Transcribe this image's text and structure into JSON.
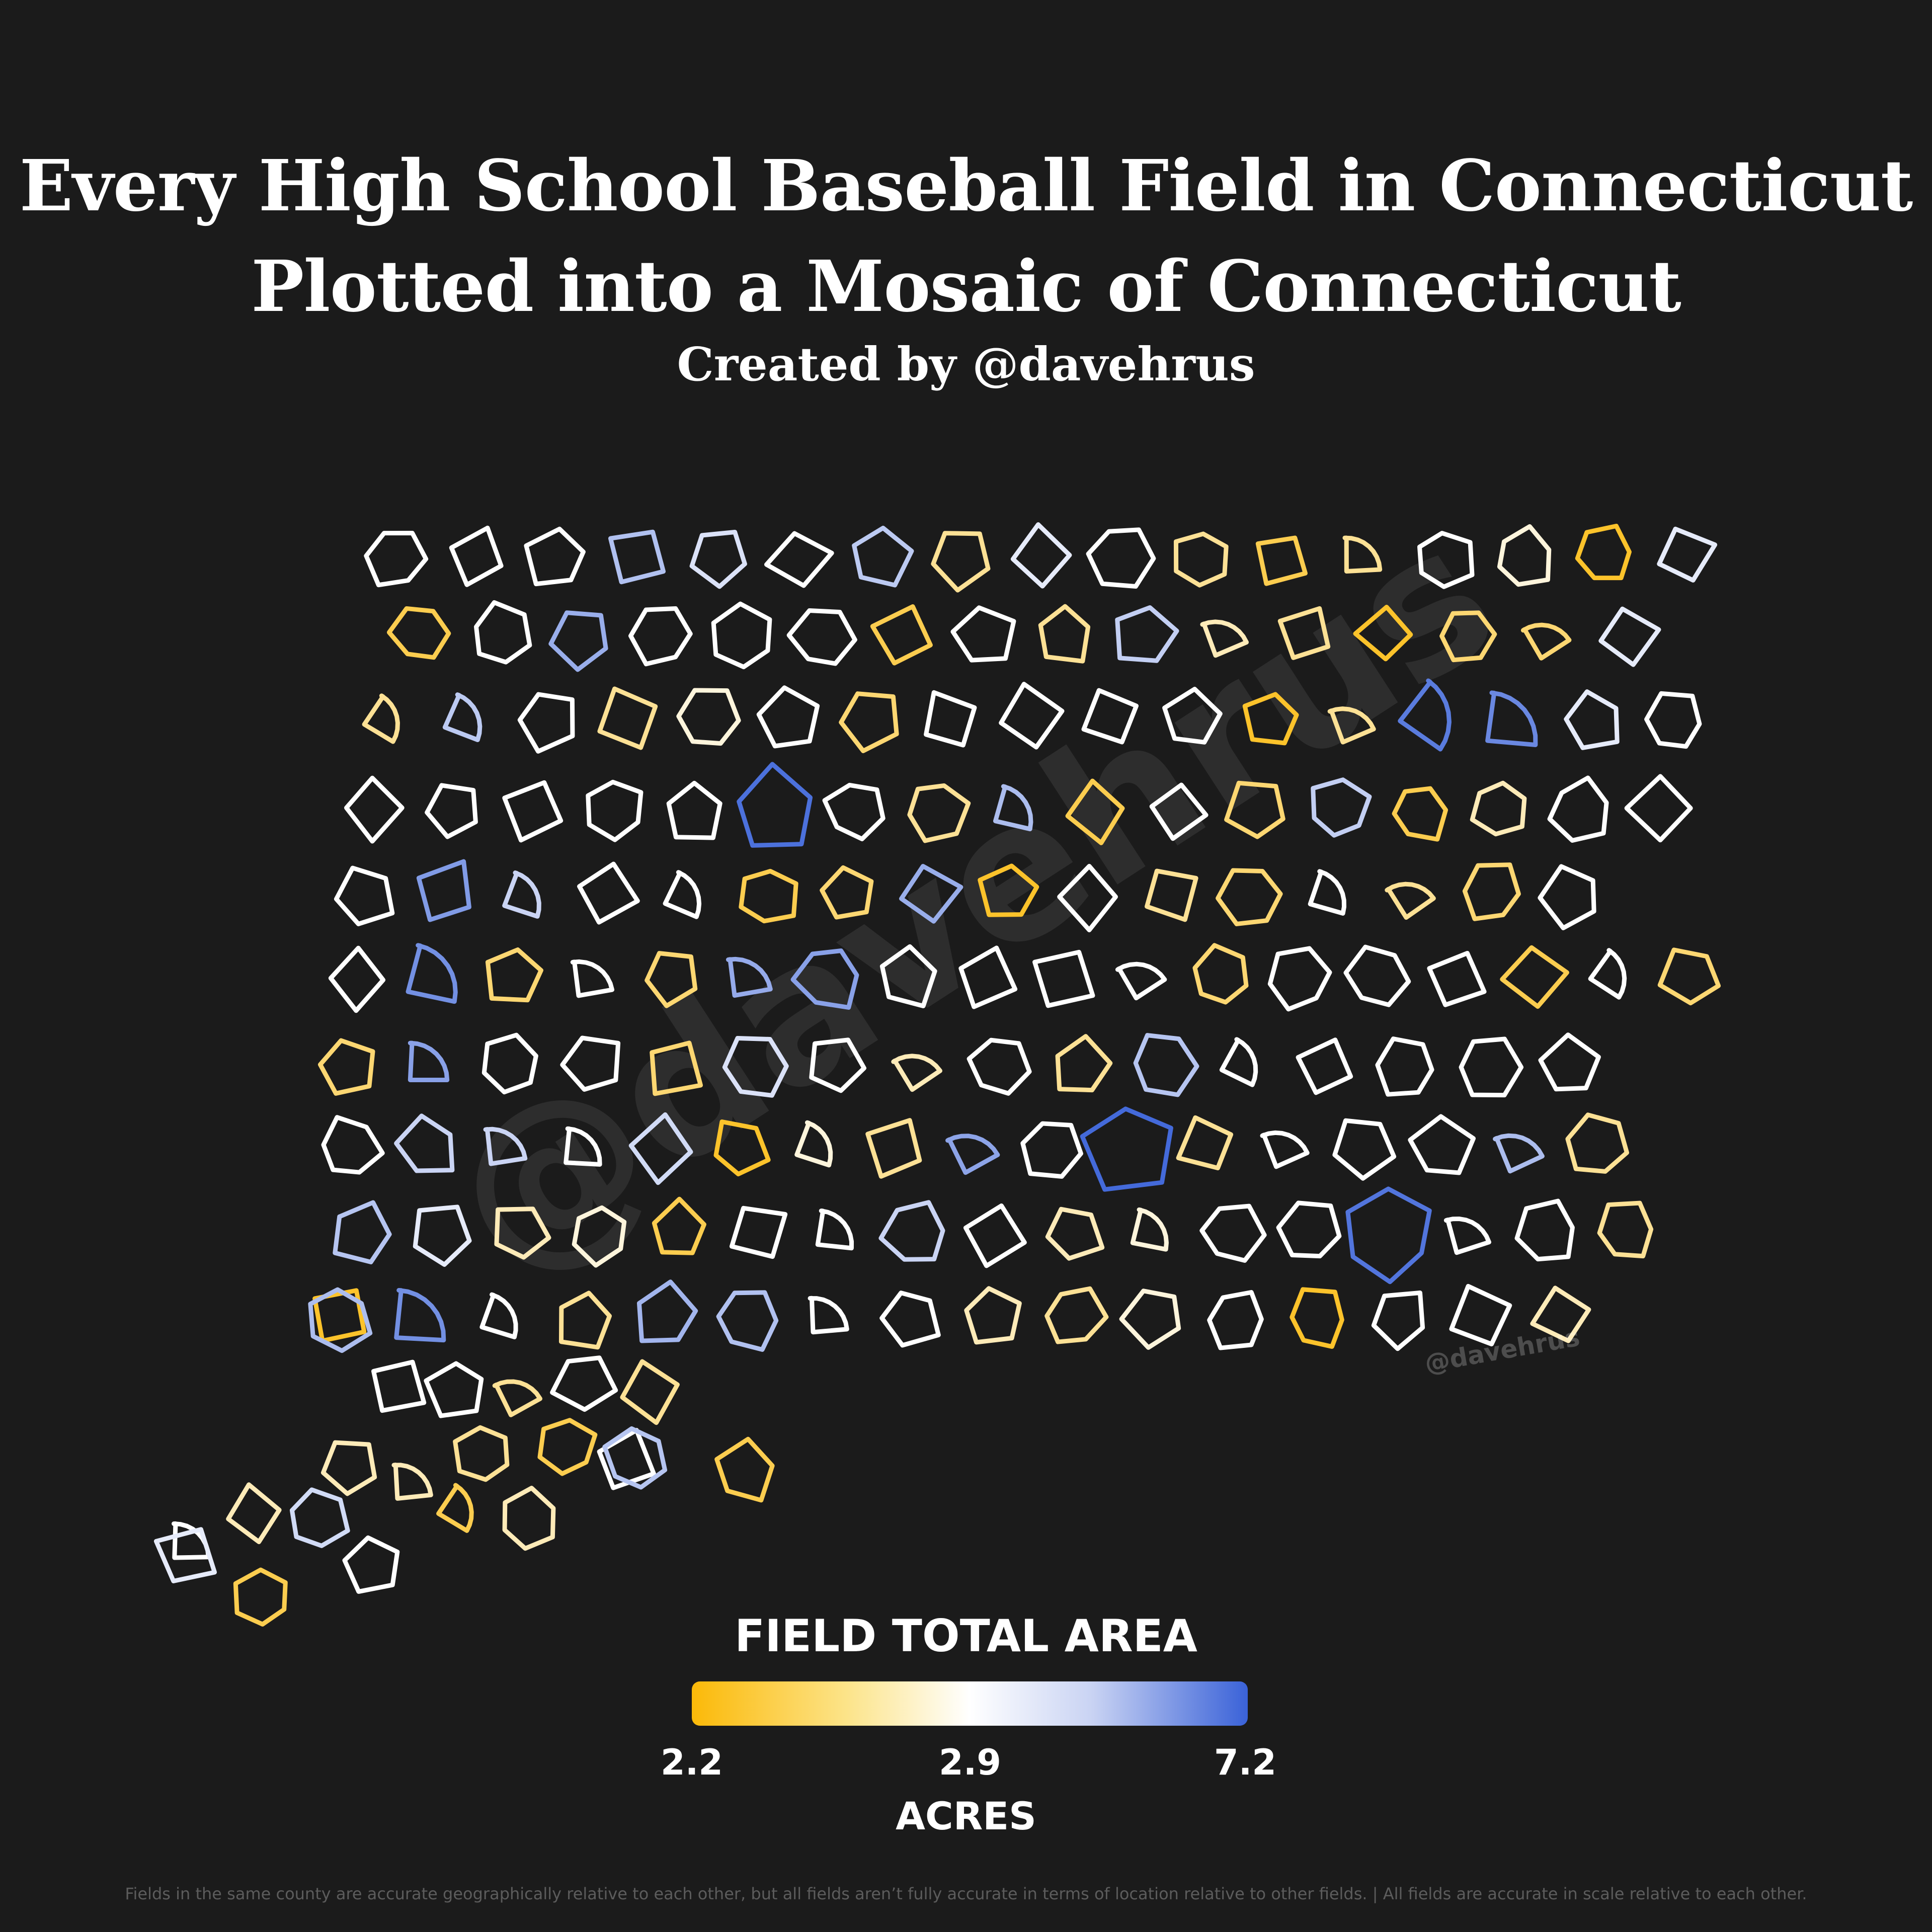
{
  "header": {
    "title_line1": "Every High School Baseball Field in Connecticut",
    "title_line2": "Plotted into a Mosaic of Connecticut",
    "subtitle": "Created by @davehrus"
  },
  "watermark": {
    "large": "@davehrus",
    "small": "@davehrus"
  },
  "legend": {
    "title": "FIELD TOTAL AREA",
    "tick_labels": [
      "2.2",
      "2.9",
      "7.2"
    ],
    "unit": "ACRES",
    "colors": [
      "#fbb908",
      "#ffffff",
      "#3a62d8"
    ]
  },
  "footnote": "Fields in the same county are accurate geographically relative to each other, but all fields aren’t fully accurate in terms of location relative to other fields.  |  All fields are accurate in scale relative to each other.",
  "chart_data": {
    "type": "mosaic",
    "color_scale": {
      "min": 2.2,
      "mid": 2.9,
      "max": 7.2,
      "unit": "acres"
    },
    "rows": [
      [
        2.9,
        2.9,
        2.9,
        3.7,
        3.1,
        2.9,
        3.5,
        2.6,
        3.0,
        2.9,
        2.6,
        2.4,
        2.6,
        2.9,
        2.8,
        2.3,
        3.0
      ],
      [
        2.4,
        2.9,
        4.2,
        2.9,
        2.9,
        2.9,
        2.4,
        2.9,
        2.6,
        3.4,
        2.7,
        2.6,
        2.3,
        2.5,
        2.5,
        3.0
      ],
      [
        2.6,
        3.5,
        2.9,
        2.6,
        2.8,
        2.9,
        2.5,
        2.9,
        2.9,
        2.9,
        2.9,
        2.3,
        2.6,
        6.0,
        5.5,
        3.0,
        2.9
      ],
      [
        2.9,
        2.9,
        2.9,
        2.9,
        2.9,
        6.5,
        2.9,
        2.6,
        3.8,
        2.4,
        2.9,
        2.5,
        3.4,
        2.4,
        2.7,
        2.9,
        2.9
      ],
      [
        2.9,
        4.8,
        3.3,
        2.9,
        2.9,
        2.4,
        2.5,
        4.2,
        2.3,
        2.9,
        2.6,
        2.5,
        2.9,
        2.6,
        2.5,
        2.9
      ],
      [
        2.9,
        5.2,
        2.5,
        2.9,
        2.5,
        4.3,
        4.6,
        2.9,
        2.9,
        2.9,
        2.9,
        2.5,
        2.9,
        2.9,
        2.9,
        2.4,
        2.9,
        2.5
      ],
      [
        2.5,
        4.6,
        2.9,
        2.9,
        2.5,
        3.1,
        2.9,
        2.7,
        2.9,
        2.6,
        3.6,
        2.9,
        2.9,
        2.9,
        2.9,
        2.9
      ],
      [
        2.9,
        3.3,
        3.3,
        2.9,
        3.2,
        2.3,
        2.8,
        2.6,
        4.5,
        2.9,
        6.8,
        2.6,
        2.9,
        2.9,
        2.9,
        3.8,
        2.6
      ],
      [
        3.6,
        3.0,
        2.7,
        2.8,
        2.4,
        2.9,
        2.9,
        3.3,
        2.9,
        2.7,
        2.8,
        2.9,
        2.9,
        6.3,
        2.9,
        2.9,
        2.6
      ],
      [
        2.3,
        5.2,
        2.9,
        2.6,
        4.0,
        3.7,
        2.9,
        2.9,
        2.7,
        2.6,
        2.8,
        2.9,
        2.3,
        2.9,
        2.9,
        2.7
      ],
      [
        3.8,
        2.9,
        2.9,
        2.6,
        2.9,
        2.6
      ],
      [
        2.7,
        2.7,
        2.6,
        2.4,
        2.9,
        2.9,
        2.7,
        3.2
      ],
      [
        3.0,
        2.4,
        2.9,
        2.4,
        2.7,
        3.6,
        2.4
      ]
    ]
  }
}
